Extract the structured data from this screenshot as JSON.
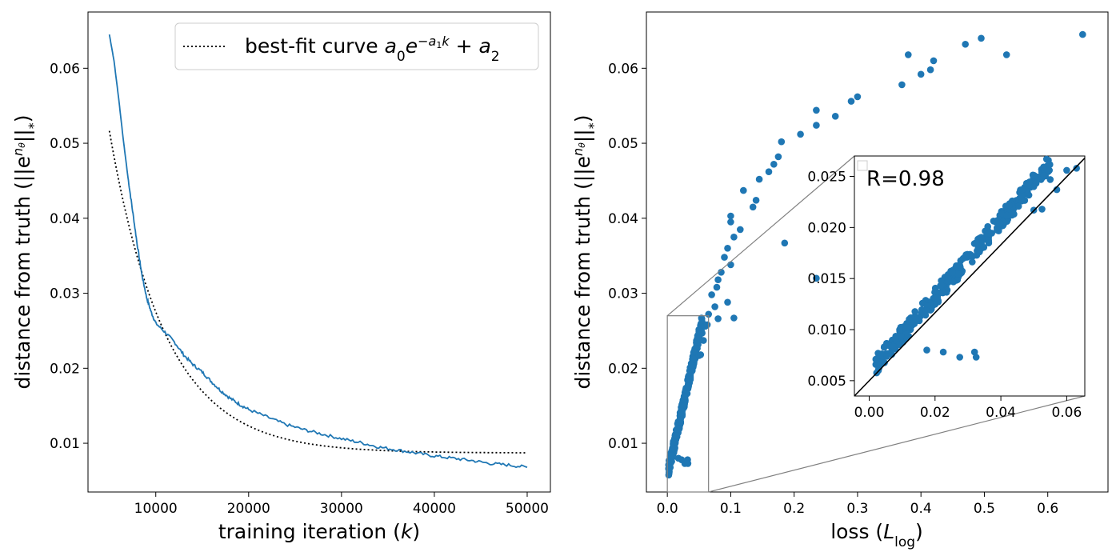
{
  "chart_data": [
    {
      "type": "line",
      "xlabel": "training iteration (k)",
      "ylabel": "distance from truth (||e^{nθ}||*)",
      "xlim": [
        2700,
        52500
      ],
      "ylim": [
        0.0035,
        0.0675
      ],
      "xticks": [
        10000,
        20000,
        30000,
        40000,
        50000
      ],
      "xtick_labels": [
        "10000",
        "20000",
        "30000",
        "40000",
        "50000"
      ],
      "yticks": [
        0.01,
        0.02,
        0.03,
        0.04,
        0.05,
        0.06
      ],
      "ytick_labels": [
        "0.01",
        "0.02",
        "0.03",
        "0.04",
        "0.05",
        "0.06"
      ],
      "grid": false,
      "legend": {
        "placement": "top-right",
        "entries": [
          {
            "text": "best-fit curve",
            "math": "a₀e^{−a₁k} + a₂",
            "style": "dotted"
          }
        ]
      },
      "series": [
        {
          "color": "#1f77b4",
          "style": "solid",
          "x": [
            5000,
            5500,
            6000,
            6500,
            7000,
            7500,
            8000,
            8500,
            9000,
            9500,
            10000,
            11000,
            12000,
            13000,
            14000,
            15000,
            16000,
            17000,
            18000,
            19000,
            20000,
            22000,
            24000,
            26000,
            28000,
            30000,
            32000,
            34000,
            36000,
            38000,
            40000,
            42000,
            44000,
            46000,
            48000,
            50000
          ],
          "y": [
            0.0645,
            0.061,
            0.056,
            0.0505,
            0.0455,
            0.041,
            0.0365,
            0.0325,
            0.0295,
            0.0275,
            0.026,
            0.0248,
            0.0235,
            0.0218,
            0.0205,
            0.0195,
            0.0182,
            0.017,
            0.016,
            0.0152,
            0.0145,
            0.0135,
            0.0125,
            0.0118,
            0.0112,
            0.0106,
            0.0101,
            0.0095,
            0.0091,
            0.0087,
            0.0083,
            0.008,
            0.0077,
            0.0073,
            0.0071,
            0.0068
          ]
        },
        {
          "name": "best-fit curve",
          "color": "#000000",
          "style": "dotted",
          "fit": {
            "a0": 0.098,
            "a1": 0.000165,
            "a2": 0.0087
          },
          "x_range": [
            5000,
            50000
          ]
        }
      ]
    },
    {
      "type": "scatter",
      "xlabel": "loss (L_log)",
      "ylabel": "distance from truth (||e^{nθ}||*)",
      "xlim": [
        -0.033,
        0.695
      ],
      "ylim": [
        0.0035,
        0.0675
      ],
      "xticks": [
        0.0,
        0.1,
        0.2,
        0.3,
        0.4,
        0.5,
        0.6
      ],
      "xtick_labels": [
        "0.0",
        "0.1",
        "0.2",
        "0.3",
        "0.4",
        "0.5",
        "0.6"
      ],
      "yticks": [
        0.01,
        0.02,
        0.03,
        0.04,
        0.05,
        0.06
      ],
      "ytick_labels": [
        "0.01",
        "0.02",
        "0.03",
        "0.04",
        "0.05",
        "0.06"
      ],
      "grid": false,
      "color": "#1f77b4",
      "points": [
        [
          0.655,
          0.0645
        ],
        [
          0.535,
          0.0618
        ],
        [
          0.495,
          0.064
        ],
        [
          0.47,
          0.0632
        ],
        [
          0.38,
          0.0618
        ],
        [
          0.4,
          0.0592
        ],
        [
          0.42,
          0.061
        ],
        [
          0.415,
          0.0598
        ],
        [
          0.37,
          0.0578
        ],
        [
          0.3,
          0.0562
        ],
        [
          0.29,
          0.0556
        ],
        [
          0.265,
          0.0536
        ],
        [
          0.235,
          0.0544
        ],
        [
          0.235,
          0.0524
        ],
        [
          0.21,
          0.0512
        ],
        [
          0.18,
          0.0502
        ],
        [
          0.175,
          0.0482
        ],
        [
          0.168,
          0.0472
        ],
        [
          0.16,
          0.0462
        ],
        [
          0.145,
          0.0452
        ],
        [
          0.14,
          0.0424
        ],
        [
          0.135,
          0.0415
        ],
        [
          0.12,
          0.0437
        ],
        [
          0.1,
          0.0403
        ],
        [
          0.1,
          0.0395
        ],
        [
          0.115,
          0.0385
        ],
        [
          0.105,
          0.0375
        ],
        [
          0.095,
          0.036
        ],
        [
          0.09,
          0.0348
        ],
        [
          0.1,
          0.0338
        ],
        [
          0.085,
          0.0328
        ],
        [
          0.08,
          0.0318
        ],
        [
          0.078,
          0.0308
        ],
        [
          0.07,
          0.0298
        ],
        [
          0.095,
          0.0288
        ],
        [
          0.075,
          0.0282
        ],
        [
          0.065,
          0.0272
        ],
        [
          0.08,
          0.0266
        ],
        [
          0.105,
          0.0267
        ],
        [
          0.185,
          0.0367
        ],
        [
          0.235,
          0.032
        ]
      ],
      "inset": {
        "type": "scatter",
        "region": {
          "x": [
            0.0,
            0.065
          ],
          "y": [
            0.0035,
            0.027
          ]
        },
        "xlim": [
          -0.0045,
          0.0655
        ],
        "ylim": [
          0.0035,
          0.027
        ],
        "xticks": [
          0.0,
          0.02,
          0.04,
          0.06
        ],
        "xtick_labels": [
          "0.00",
          "0.02",
          "0.04",
          "0.06"
        ],
        "yticks": [
          0.005,
          0.01,
          0.015,
          0.02,
          0.025
        ],
        "ytick_labels": [
          "0.005",
          "0.010",
          "0.015",
          "0.020",
          "0.025"
        ],
        "annotation": "R=0.98",
        "fit_line": {
          "x": [
            -0.0045,
            0.0655
          ],
          "y": [
            0.0035,
            0.0268
          ],
          "color": "#000000"
        },
        "points_seed": 42,
        "points_count": 300,
        "outliers": [
          [
            0.0175,
            0.008
          ],
          [
            0.0225,
            0.0078
          ],
          [
            0.0275,
            0.0073
          ],
          [
            0.032,
            0.0078
          ],
          [
            0.0325,
            0.0073
          ],
          [
            0.0425,
            0.0222
          ],
          [
            0.05,
            0.0217
          ],
          [
            0.0525,
            0.0218
          ]
        ]
      }
    }
  ]
}
